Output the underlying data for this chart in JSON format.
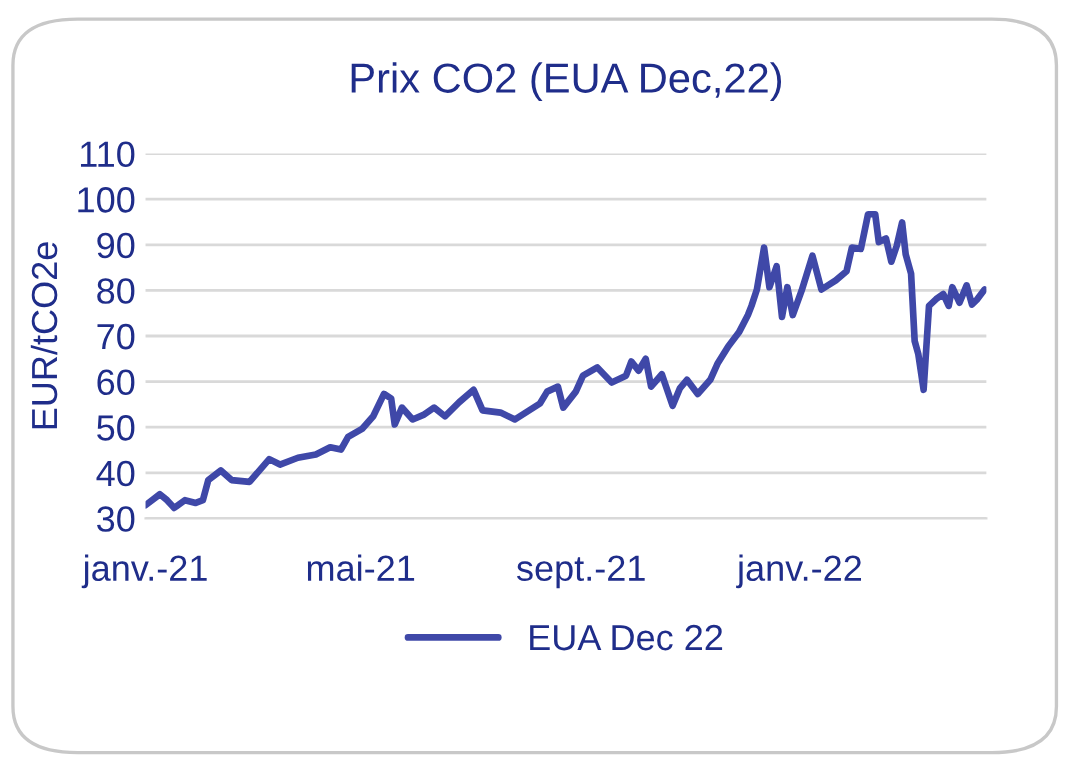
{
  "chart_data": {
    "type": "line",
    "title": "Prix CO2 (EUA Dec,22)",
    "ylabel": "EUR/tCO2e",
    "x": [
      "2021-01-01",
      "2021-01-09",
      "2021-01-13",
      "2021-01-17",
      "2021-01-23",
      "2021-01-29",
      "2021-02-02",
      "2021-02-05",
      "2021-02-12",
      "2021-02-18",
      "2021-02-28",
      "2021-03-11",
      "2021-03-17",
      "2021-03-27",
      "2021-04-06",
      "2021-04-14",
      "2021-04-20",
      "2021-04-24",
      "2021-05-02",
      "2021-05-08",
      "2021-05-14",
      "2021-05-18",
      "2021-05-20",
      "2021-05-24",
      "2021-05-30",
      "2021-06-05",
      "2021-06-11",
      "2021-06-17",
      "2021-06-25",
      "2021-07-03",
      "2021-07-08",
      "2021-07-18",
      "2021-07-26",
      "2021-08-09",
      "2021-08-13",
      "2021-08-19",
      "2021-08-22",
      "2021-08-29",
      "2021-09-02",
      "2021-09-10",
      "2021-09-18",
      "2021-09-26",
      "2021-09-29",
      "2021-10-03",
      "2021-10-07",
      "2021-10-10",
      "2021-10-16",
      "2021-10-22",
      "2021-10-26",
      "2021-10-30",
      "2021-11-05",
      "2021-11-12",
      "2021-11-16",
      "2021-11-22",
      "2021-11-28",
      "2021-12-03",
      "2021-12-05",
      "2021-12-08",
      "2021-12-12",
      "2021-12-15",
      "2021-12-19",
      "2021-12-22",
      "2021-12-25",
      "2021-12-28",
      "2022-01-02",
      "2022-01-08",
      "2022-01-13",
      "2022-01-21",
      "2022-01-27",
      "2022-01-30",
      "2022-02-04",
      "2022-02-08",
      "2022-02-12",
      "2022-02-14",
      "2022-02-18",
      "2022-02-21",
      "2022-02-24",
      "2022-02-27",
      "2022-03-01",
      "2022-03-04",
      "2022-03-06",
      "2022-03-08",
      "2022-03-11",
      "2022-03-14",
      "2022-03-18",
      "2022-03-22",
      "2022-03-25",
      "2022-03-27",
      "2022-03-31",
      "2022-04-04",
      "2022-04-07",
      "2022-04-10",
      "2022-04-14"
    ],
    "series": [
      {
        "name": "EUA Dec 22",
        "color": "#3f48a8",
        "values": [
          32.9,
          35.3,
          34,
          32.3,
          34,
          33.4,
          34,
          38.4,
          40.5,
          38.4,
          38,
          43,
          41.8,
          43.3,
          44,
          45.6,
          45.1,
          47.9,
          49.7,
          52.4,
          57.3,
          56.3,
          50.6,
          54.3,
          51.7,
          52.7,
          54.3,
          52.4,
          55.5,
          58.2,
          53.7,
          53.2,
          51.7,
          55.2,
          57.8,
          58.9,
          54.3,
          57.8,
          61.3,
          63.1,
          59.8,
          61.3,
          64.4,
          62.4,
          65,
          58.9,
          61.6,
          54.7,
          58.5,
          60.4,
          57.3,
          60.4,
          63.9,
          67.7,
          70.8,
          74.6,
          76.6,
          80.2,
          89.4,
          80.7,
          85.3,
          74.2,
          80.7,
          74.6,
          80,
          87.6,
          80.2,
          82.2,
          84.2,
          89.4,
          89.1,
          96.7,
          96.7,
          90.6,
          91.4,
          86.3,
          89.8,
          94.9,
          87.9,
          83.7,
          68.9,
          66.1,
          58.2,
          76.6,
          78.1,
          79.2,
          76.6,
          80.7,
          77.3,
          81.1,
          76.9,
          78.1,
          80.2
        ]
      }
    ],
    "xlim": [
      "2021-01-01",
      "2022-04-15"
    ],
    "xticks": [
      {
        "value": "2021-01-01",
        "label": "janv.-21"
      },
      {
        "value": "2021-05-01",
        "label": "mai-21"
      },
      {
        "value": "2021-09-01",
        "label": "sept.-21"
      },
      {
        "value": "2022-01-01",
        "label": "janv.-22"
      }
    ],
    "ylim": [
      30,
      110
    ],
    "yticks": [
      30,
      40,
      50,
      60,
      70,
      80,
      90,
      100,
      110
    ],
    "grid": "y",
    "legend": "bottom",
    "line_style": "solid",
    "marker": "none"
  }
}
